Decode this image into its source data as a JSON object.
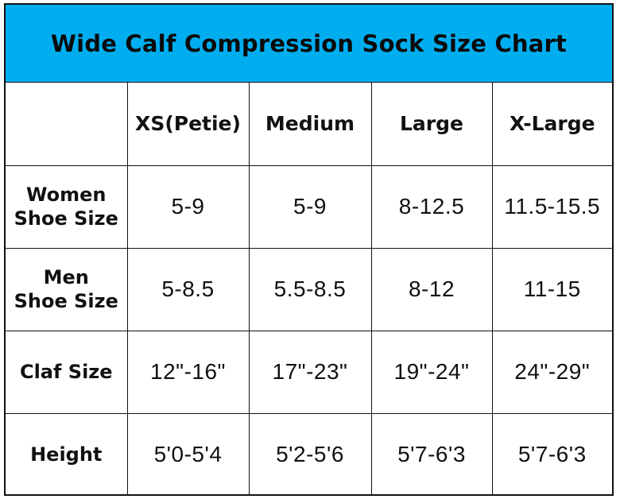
{
  "title": "Wide Calf Compression Sock Size Chart",
  "colors": {
    "title_background": "#00AEEF",
    "border": "#111111",
    "text": "#111111",
    "cell_background": "#FFFFFF"
  },
  "table": {
    "corner": "",
    "columns": [
      "XS(Petie)",
      "Medium",
      "Large",
      "X-Large"
    ],
    "rows": [
      {
        "label_lines": [
          "Women",
          "Shoe Size"
        ],
        "values": [
          "5-9",
          "5-9",
          "8-12.5",
          "11.5-15.5"
        ]
      },
      {
        "label_lines": [
          "Men",
          "Shoe Size"
        ],
        "values": [
          "5-8.5",
          "5.5-8.5",
          "8-12",
          "11-15"
        ]
      },
      {
        "label_lines": [
          "Claf Size"
        ],
        "values": [
          "12\"-16\"",
          "17\"-23\"",
          "19\"-24\"",
          "24\"-29\""
        ]
      },
      {
        "label_lines": [
          "Height"
        ],
        "values": [
          "5'0-5'4",
          "5'2-5'6",
          "5'7-6'3",
          "5'7-6'3"
        ]
      }
    ]
  }
}
